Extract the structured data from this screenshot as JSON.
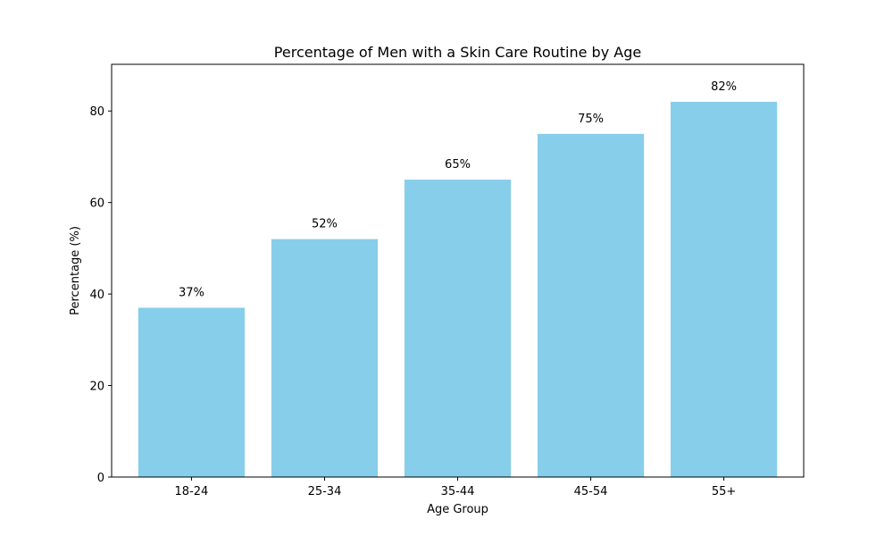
{
  "chart_data": {
    "type": "bar",
    "title": "Percentage of Men with a Skin Care Routine by Age",
    "xlabel": "Age Group",
    "ylabel": "Percentage (%)",
    "categories": [
      "18-24",
      "25-34",
      "35-44",
      "45-54",
      "55+"
    ],
    "values": [
      37,
      52,
      65,
      75,
      82
    ],
    "data_labels": [
      "37%",
      "52%",
      "65%",
      "75%",
      "82%"
    ],
    "ylim": [
      0,
      90.2
    ],
    "yticks": [
      0,
      20,
      40,
      60,
      80
    ],
    "grid": false,
    "legend": "none",
    "bar_color": "#87CEEB"
  }
}
